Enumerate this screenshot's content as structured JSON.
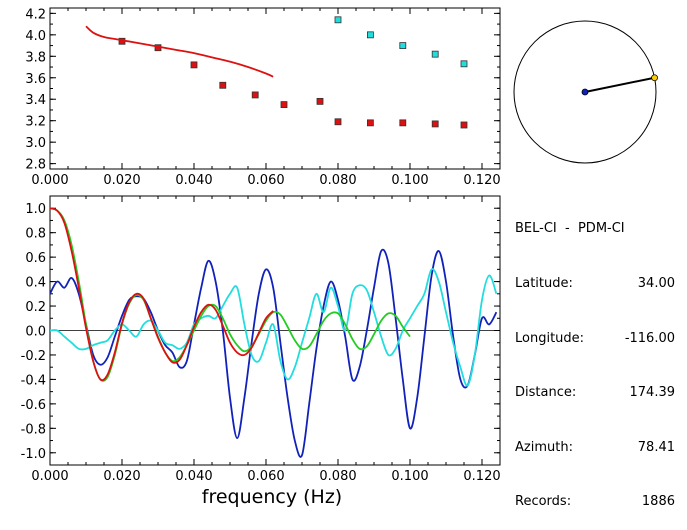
{
  "station": {
    "pair": "BEL-CI  -  PDM-CI",
    "rows": [
      {
        "label": "Latitude:",
        "value": "34.00"
      },
      {
        "label": "Longitude:",
        "value": "-116.00"
      },
      {
        "label": "Distance:",
        "value": "174.39"
      },
      {
        "label": "Azimuth:",
        "value": "78.41"
      },
      {
        "label": "Records:",
        "value": "1886"
      }
    ]
  },
  "chart_data": [
    {
      "type": "scatter",
      "title": "",
      "xlabel": "",
      "ylabel": "",
      "xlim": [
        0.0,
        0.125
      ],
      "ylim": [
        2.75,
        4.25
      ],
      "xticks": [
        "0.000",
        "0.020",
        "0.040",
        "0.060",
        "0.080",
        "0.100",
        "0.120"
      ],
      "yticks": [
        "2.8",
        "3.0",
        "3.2",
        "3.4",
        "3.6",
        "3.8",
        "4.0",
        "4.2"
      ],
      "series": [
        {
          "color": "#dd1111",
          "kind": "square",
          "x": [
            0.02,
            0.03,
            0.04,
            0.048,
            0.057,
            0.065,
            0.075,
            0.08,
            0.089,
            0.098,
            0.107,
            0.115
          ],
          "y": [
            3.94,
            3.88,
            3.72,
            3.53,
            3.44,
            3.35,
            3.38,
            3.19,
            3.18,
            3.18,
            3.17,
            3.16
          ]
        },
        {
          "color": "#22dddd",
          "kind": "square",
          "x": [
            0.08,
            0.089,
            0.098,
            0.107,
            0.115
          ],
          "y": [
            4.14,
            4.0,
            3.9,
            3.82,
            3.73
          ]
        },
        {
          "color": "#dd1111",
          "kind": "line",
          "x": [
            0.01,
            0.012,
            0.015,
            0.02,
            0.025,
            0.03,
            0.035,
            0.04,
            0.045,
            0.05,
            0.055,
            0.06,
            0.062
          ],
          "y": [
            4.08,
            4.02,
            3.98,
            3.95,
            3.92,
            3.89,
            3.86,
            3.83,
            3.79,
            3.75,
            3.7,
            3.64,
            3.61
          ]
        }
      ]
    },
    {
      "type": "line",
      "title": "",
      "xlabel": "frequency (Hz)",
      "ylabel": "",
      "xlim": [
        0.0,
        0.125
      ],
      "ylim": [
        -1.1,
        1.1
      ],
      "xticks": [
        "0.000",
        "0.020",
        "0.040",
        "0.060",
        "0.080",
        "0.100",
        "0.120"
      ],
      "yticks": [
        "1.0",
        "0.8",
        "0.6",
        "0.4",
        "0.2",
        "0.0",
        "-0.2",
        "-0.4",
        "-0.6",
        "-0.8",
        "-1.0"
      ],
      "series": [
        {
          "color": "#1122bb",
          "x": [
            0.0,
            0.002,
            0.004,
            0.006,
            0.008,
            0.01,
            0.012,
            0.014,
            0.016,
            0.018,
            0.02,
            0.022,
            0.024,
            0.026,
            0.028,
            0.03,
            0.032,
            0.034,
            0.036,
            0.038,
            0.04,
            0.042,
            0.044,
            0.046,
            0.048,
            0.05,
            0.052,
            0.054,
            0.056,
            0.058,
            0.06,
            0.062,
            0.064,
            0.066,
            0.068,
            0.07,
            0.072,
            0.074,
            0.076,
            0.078,
            0.08,
            0.082,
            0.084,
            0.086,
            0.088,
            0.09,
            0.092,
            0.094,
            0.096,
            0.098,
            0.1,
            0.102,
            0.104,
            0.106,
            0.108,
            0.11,
            0.112,
            0.114,
            0.116,
            0.118,
            0.12,
            0.122,
            0.124
          ],
          "y": [
            0.3,
            0.4,
            0.35,
            0.43,
            0.3,
            0.05,
            -0.2,
            -0.28,
            -0.22,
            -0.05,
            0.12,
            0.25,
            0.28,
            0.26,
            0.15,
            0.0,
            -0.12,
            -0.18,
            -0.3,
            -0.25,
            0.05,
            0.35,
            0.57,
            0.4,
            0.0,
            -0.55,
            -0.88,
            -0.55,
            -0.1,
            0.3,
            0.5,
            0.35,
            -0.1,
            -0.55,
            -0.9,
            -1.02,
            -0.6,
            -0.15,
            0.2,
            0.4,
            0.25,
            -0.05,
            -0.4,
            -0.3,
            0.0,
            0.35,
            0.65,
            0.55,
            0.1,
            -0.4,
            -0.8,
            -0.55,
            -0.05,
            0.45,
            0.65,
            0.4,
            -0.05,
            -0.4,
            -0.45,
            -0.2,
            0.1,
            0.05,
            0.15
          ]
        },
        {
          "color": "#22dddd",
          "x": [
            0.0,
            0.002,
            0.004,
            0.006,
            0.008,
            0.01,
            0.012,
            0.014,
            0.016,
            0.018,
            0.02,
            0.022,
            0.024,
            0.026,
            0.028,
            0.03,
            0.032,
            0.034,
            0.036,
            0.038,
            0.04,
            0.042,
            0.044,
            0.046,
            0.048,
            0.05,
            0.052,
            0.054,
            0.056,
            0.058,
            0.06,
            0.062,
            0.064,
            0.066,
            0.068,
            0.07,
            0.072,
            0.074,
            0.076,
            0.078,
            0.08,
            0.082,
            0.084,
            0.086,
            0.088,
            0.09,
            0.092,
            0.094,
            0.096,
            0.098,
            0.1,
            0.102,
            0.104,
            0.106,
            0.108,
            0.11,
            0.112,
            0.114,
            0.116,
            0.118,
            0.12,
            0.122,
            0.124
          ],
          "y": [
            0.0,
            0.0,
            -0.05,
            -0.1,
            -0.15,
            -0.15,
            -0.12,
            -0.1,
            -0.08,
            0.0,
            0.05,
            0.0,
            -0.05,
            0.05,
            0.08,
            0.0,
            -0.1,
            -0.12,
            -0.15,
            -0.1,
            0.05,
            0.1,
            0.12,
            0.1,
            0.2,
            0.3,
            0.35,
            0.05,
            -0.2,
            -0.25,
            -0.1,
            0.05,
            -0.25,
            -0.4,
            -0.3,
            -0.1,
            0.1,
            0.3,
            0.15,
            0.35,
            0.2,
            0.0,
            0.3,
            0.37,
            0.33,
            0.15,
            -0.05,
            -0.2,
            -0.15,
            0.0,
            0.1,
            0.2,
            0.3,
            0.5,
            0.4,
            0.15,
            -0.1,
            -0.3,
            -0.45,
            -0.2,
            0.25,
            0.45,
            0.3
          ]
        },
        {
          "color": "#22cc22",
          "x": [
            0.0,
            0.002,
            0.004,
            0.006,
            0.008,
            0.01,
            0.012,
            0.014,
            0.016,
            0.018,
            0.02,
            0.022,
            0.024,
            0.026,
            0.028,
            0.03,
            0.032,
            0.034,
            0.036,
            0.038,
            0.04,
            0.042,
            0.044,
            0.046,
            0.048,
            0.05,
            0.052,
            0.054,
            0.056,
            0.058,
            0.06,
            0.062,
            0.064,
            0.066,
            0.068,
            0.07,
            0.072,
            0.074,
            0.076,
            0.078,
            0.08,
            0.082,
            0.084,
            0.086,
            0.088,
            0.09,
            0.092,
            0.094,
            0.096,
            0.098,
            0.1
          ],
          "y": [
            1.0,
            0.98,
            0.9,
            0.7,
            0.4,
            0.05,
            -0.25,
            -0.4,
            -0.38,
            -0.2,
            0.05,
            0.22,
            0.29,
            0.25,
            0.1,
            -0.05,
            -0.18,
            -0.25,
            -0.22,
            -0.12,
            0.0,
            0.12,
            0.2,
            0.2,
            0.1,
            -0.03,
            -0.12,
            -0.17,
            -0.13,
            -0.03,
            0.08,
            0.15,
            0.13,
            0.03,
            -0.08,
            -0.15,
            -0.13,
            -0.03,
            0.08,
            0.14,
            0.14,
            0.05,
            -0.07,
            -0.15,
            -0.13,
            -0.03,
            0.08,
            0.14,
            0.12,
            0.03,
            -0.05
          ]
        },
        {
          "color": "#dd1111",
          "x": [
            0.0,
            0.002,
            0.004,
            0.006,
            0.008,
            0.01,
            0.012,
            0.014,
            0.016,
            0.018,
            0.02,
            0.022,
            0.024,
            0.026,
            0.028,
            0.03,
            0.032,
            0.034,
            0.036,
            0.038,
            0.04,
            0.042,
            0.044,
            0.046,
            0.048,
            0.05,
            0.052,
            0.054,
            0.056,
            0.058,
            0.06,
            0.062
          ],
          "y": [
            1.0,
            0.98,
            0.88,
            0.65,
            0.35,
            0.02,
            -0.25,
            -0.4,
            -0.36,
            -0.18,
            0.06,
            0.23,
            0.3,
            0.26,
            0.1,
            -0.06,
            -0.18,
            -0.26,
            -0.24,
            -0.12,
            0.03,
            0.15,
            0.21,
            0.17,
            0.04,
            -0.1,
            -0.18,
            -0.2,
            -0.14,
            -0.02,
            0.1,
            0.16
          ]
        }
      ]
    }
  ],
  "polar": {
    "azimuth_deg": 78.41,
    "line_color": "#000000",
    "center_dot_color": "#1122bb",
    "end_dot_color": "#ffcc00"
  }
}
